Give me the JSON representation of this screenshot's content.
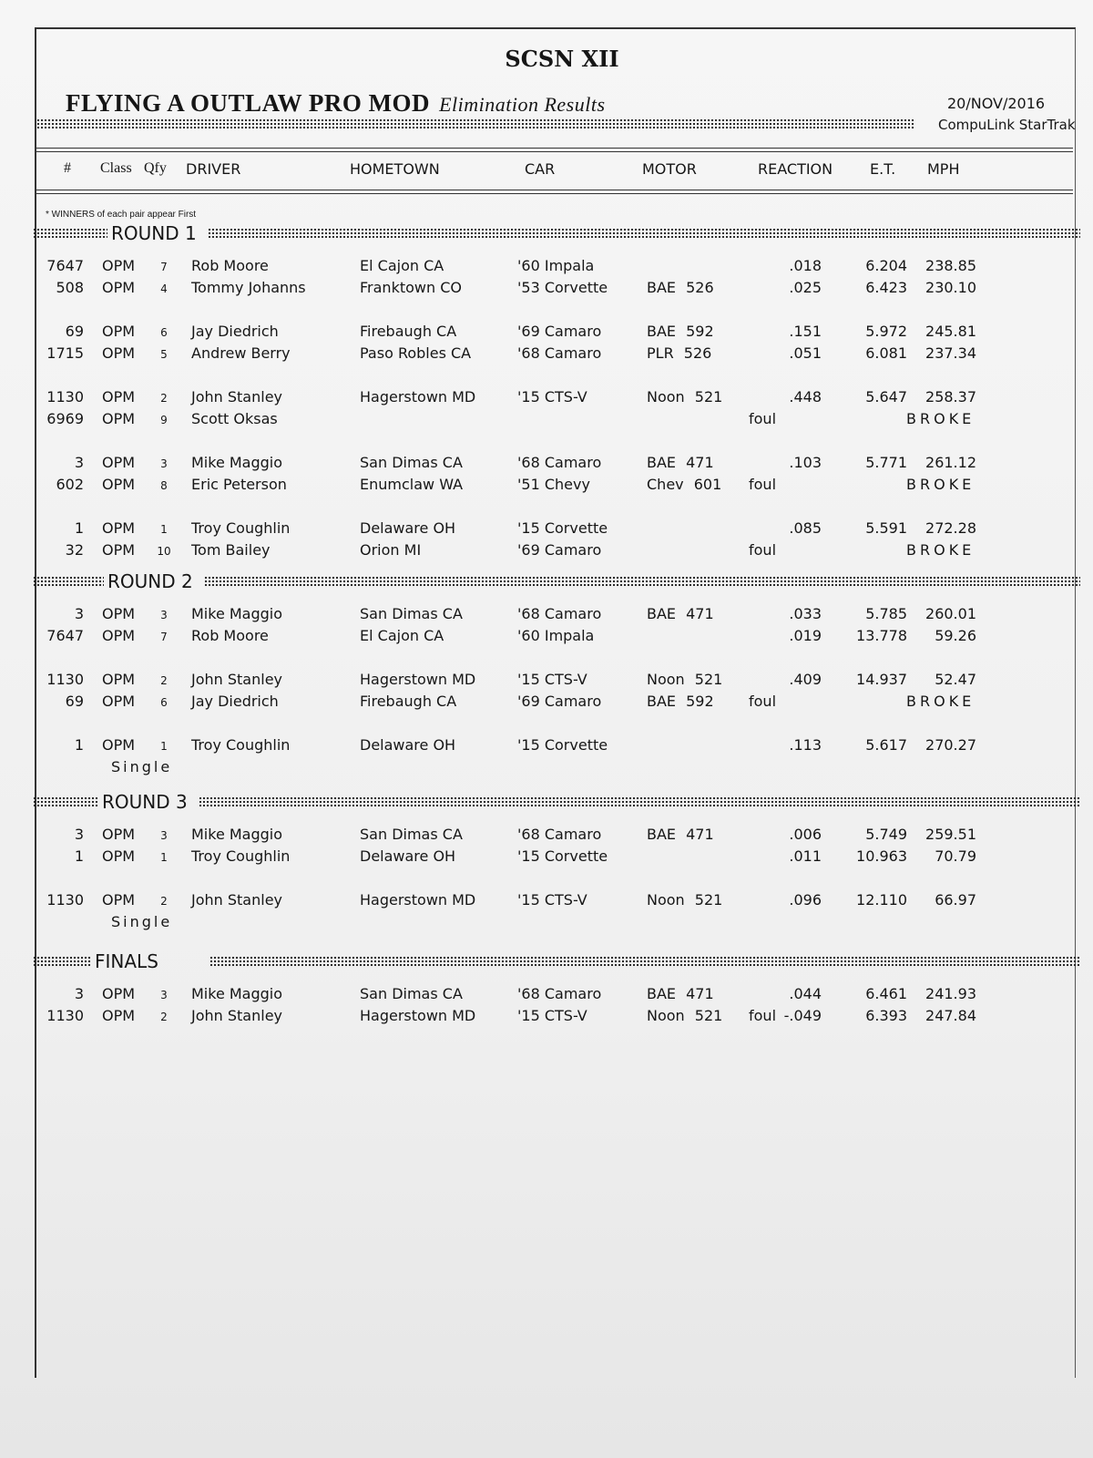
{
  "header": {
    "title": "SCSN XII",
    "class_name": "FLYING A OUTLAW PRO MOD",
    "report_type": "Elimination Results",
    "date": "20/NOV/2016",
    "brand": "CompuLink  StarTrak"
  },
  "columns": [
    "#",
    "Class",
    "Qfy",
    "DRIVER",
    "HOMETOWN",
    "CAR",
    "MOTOR",
    "REACTION",
    "E.T.",
    "MPH"
  ],
  "note": "* WINNERS of each pair appear First",
  "rounds": [
    {
      "label": "ROUND 1",
      "pairs": [
        {
          "rows": [
            {
              "num": "7647",
              "class": "OPM",
              "qfy": "7",
              "driver": "Rob Moore",
              "hometown": "El Cajon CA",
              "car": "'60 Impala",
              "motor": "",
              "foul": "",
              "reaction": ".018",
              "et": "6.204",
              "mph": "238.85",
              "broke": ""
            },
            {
              "num": "508",
              "class": "OPM",
              "qfy": "4",
              "driver": "Tommy Johanns",
              "hometown": "Franktown CO",
              "car": "'53 Corvette",
              "motor": "BAE 526",
              "foul": "",
              "reaction": ".025",
              "et": "6.423",
              "mph": "230.10",
              "broke": ""
            }
          ]
        },
        {
          "rows": [
            {
              "num": "69",
              "class": "OPM",
              "qfy": "6",
              "driver": "Jay Diedrich",
              "hometown": "Firebaugh CA",
              "car": "'69 Camaro",
              "motor": "BAE 592",
              "foul": "",
              "reaction": ".151",
              "et": "5.972",
              "mph": "245.81",
              "broke": ""
            },
            {
              "num": "1715",
              "class": "OPM",
              "qfy": "5",
              "driver": "Andrew Berry",
              "hometown": "Paso Robles CA",
              "car": "'68 Camaro",
              "motor": "PLR 526",
              "foul": "",
              "reaction": ".051",
              "et": "6.081",
              "mph": "237.34",
              "broke": ""
            }
          ]
        },
        {
          "rows": [
            {
              "num": "1130",
              "class": "OPM",
              "qfy": "2",
              "driver": "John Stanley",
              "hometown": "Hagerstown MD",
              "car": "'15 CTS-V",
              "motor": "Noon 521",
              "foul": "",
              "reaction": ".448",
              "et": "5.647",
              "mph": "258.37",
              "broke": ""
            },
            {
              "num": "6969",
              "class": "OPM",
              "qfy": "9",
              "driver": "Scott Oksas",
              "hometown": "",
              "car": "",
              "motor": "",
              "foul": "foul",
              "reaction": "",
              "et": "",
              "mph": "",
              "broke": "BROKE"
            }
          ]
        },
        {
          "rows": [
            {
              "num": "3",
              "class": "OPM",
              "qfy": "3",
              "driver": "Mike Maggio",
              "hometown": "San Dimas CA",
              "car": "'68 Camaro",
              "motor": "BAE 471",
              "foul": "",
              "reaction": ".103",
              "et": "5.771",
              "mph": "261.12",
              "broke": ""
            },
            {
              "num": "602",
              "class": "OPM",
              "qfy": "8",
              "driver": "Eric Peterson",
              "hometown": "Enumclaw WA",
              "car": "'51 Chevy",
              "motor": "Chev 601",
              "foul": "foul",
              "reaction": "",
              "et": "",
              "mph": "",
              "broke": "BROKE"
            }
          ]
        },
        {
          "rows": [
            {
              "num": "1",
              "class": "OPM",
              "qfy": "1",
              "driver": "Troy Coughlin",
              "hometown": "Delaware OH",
              "car": "'15 Corvette",
              "motor": "",
              "foul": "",
              "reaction": ".085",
              "et": "5.591",
              "mph": "272.28",
              "broke": ""
            },
            {
              "num": "32",
              "class": "OPM",
              "qfy": "10",
              "driver": "Tom Bailey",
              "hometown": "Orion MI",
              "car": "'69 Camaro",
              "motor": "",
              "foul": "foul",
              "reaction": "",
              "et": "",
              "mph": "",
              "broke": "BROKE"
            }
          ]
        }
      ]
    },
    {
      "label": "ROUND 2",
      "pairs": [
        {
          "rows": [
            {
              "num": "3",
              "class": "OPM",
              "qfy": "3",
              "driver": "Mike Maggio",
              "hometown": "San Dimas CA",
              "car": "'68 Camaro",
              "motor": "BAE 471",
              "foul": "",
              "reaction": ".033",
              "et": "5.785",
              "mph": "260.01",
              "broke": ""
            },
            {
              "num": "7647",
              "class": "OPM",
              "qfy": "7",
              "driver": "Rob Moore",
              "hometown": "El Cajon CA",
              "car": "'60 Impala",
              "motor": "",
              "foul": "",
              "reaction": ".019",
              "et": "13.778",
              "mph": "59.26",
              "broke": ""
            }
          ]
        },
        {
          "rows": [
            {
              "num": "1130",
              "class": "OPM",
              "qfy": "2",
              "driver": "John Stanley",
              "hometown": "Hagerstown MD",
              "car": "'15 CTS-V",
              "motor": "Noon 521",
              "foul": "",
              "reaction": ".409",
              "et": "14.937",
              "mph": "52.47",
              "broke": ""
            },
            {
              "num": "69",
              "class": "OPM",
              "qfy": "6",
              "driver": "Jay Diedrich",
              "hometown": "Firebaugh CA",
              "car": "'69 Camaro",
              "motor": "BAE 592",
              "foul": "foul",
              "reaction": "",
              "et": "",
              "mph": "",
              "broke": "BROKE"
            }
          ]
        },
        {
          "rows": [
            {
              "num": "1",
              "class": "OPM",
              "qfy": "1",
              "driver": "Troy Coughlin",
              "hometown": "Delaware OH",
              "car": "'15 Corvette",
              "motor": "",
              "foul": "",
              "reaction": ".113",
              "et": "5.617",
              "mph": "270.27",
              "broke": ""
            }
          ],
          "single": "Single"
        }
      ]
    },
    {
      "label": "ROUND 3",
      "pairs": [
        {
          "rows": [
            {
              "num": "3",
              "class": "OPM",
              "qfy": "3",
              "driver": "Mike Maggio",
              "hometown": "San Dimas CA",
              "car": "'68 Camaro",
              "motor": "BAE 471",
              "foul": "",
              "reaction": ".006",
              "et": "5.749",
              "mph": "259.51",
              "broke": ""
            },
            {
              "num": "1",
              "class": "OPM",
              "qfy": "1",
              "driver": "Troy Coughlin",
              "hometown": "Delaware OH",
              "car": "'15 Corvette",
              "motor": "",
              "foul": "",
              "reaction": ".011",
              "et": "10.963",
              "mph": "70.79",
              "broke": ""
            }
          ]
        },
        {
          "rows": [
            {
              "num": "1130",
              "class": "OPM",
              "qfy": "2",
              "driver": "John Stanley",
              "hometown": "Hagerstown MD",
              "car": "'15 CTS-V",
              "motor": "Noon 521",
              "foul": "",
              "reaction": ".096",
              "et": "12.110",
              "mph": "66.97",
              "broke": ""
            }
          ],
          "single": "Single"
        }
      ]
    },
    {
      "label": "FINALS",
      "pairs": [
        {
          "rows": [
            {
              "num": "3",
              "class": "OPM",
              "qfy": "3",
              "driver": "Mike Maggio",
              "hometown": "San Dimas CA",
              "car": "'68 Camaro",
              "motor": "BAE 471",
              "foul": "",
              "reaction": ".044",
              "et": "6.461",
              "mph": "241.93",
              "broke": ""
            },
            {
              "num": "1130",
              "class": "OPM",
              "qfy": "2",
              "driver": "John Stanley",
              "hometown": "Hagerstown MD",
              "car": "'15 CTS-V",
              "motor": "Noon 521",
              "foul": "foul",
              "reaction": "-.049",
              "et": "6.393",
              "mph": "247.84",
              "broke": ""
            }
          ]
        }
      ]
    }
  ]
}
